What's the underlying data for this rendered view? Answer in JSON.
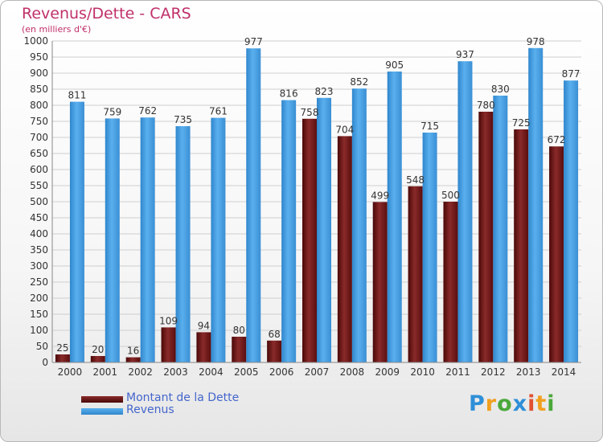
{
  "chart_data": {
    "type": "bar",
    "title": "Revenus/Dette - CARS",
    "subtitle": "(en milliers d'€)",
    "categories": [
      "2000",
      "2001",
      "2002",
      "2003",
      "2004",
      "2005",
      "2006",
      "2007",
      "2008",
      "2009",
      "2010",
      "2011",
      "2012",
      "2013",
      "2014"
    ],
    "series": [
      {
        "name": "Montant de la Dette",
        "color": "#7a1c1c",
        "values": [
          25,
          20,
          16,
          109,
          94,
          80,
          68,
          758,
          704,
          499,
          548,
          500,
          780,
          725,
          672
        ]
      },
      {
        "name": "Revenus",
        "color": "#3f9be0",
        "values": [
          811,
          759,
          762,
          735,
          761,
          977,
          816,
          823,
          852,
          905,
          715,
          937,
          830,
          978,
          877
        ]
      }
    ],
    "ylim": [
      0,
      1000
    ],
    "ytick_step": 50,
    "grid": true,
    "legend_position": "bottom-left"
  },
  "logo": {
    "letters": [
      {
        "ch": "P",
        "color": "#2f8fd8"
      },
      {
        "ch": "r",
        "color": "#f0a020"
      },
      {
        "ch": "o",
        "color": "#4aa83a"
      },
      {
        "ch": "x",
        "color": "#2f8fd8"
      },
      {
        "ch": "i",
        "color": "#e05030"
      },
      {
        "ch": "t",
        "color": "#f0a020"
      },
      {
        "ch": "i",
        "color": "#4aa83a"
      }
    ]
  }
}
